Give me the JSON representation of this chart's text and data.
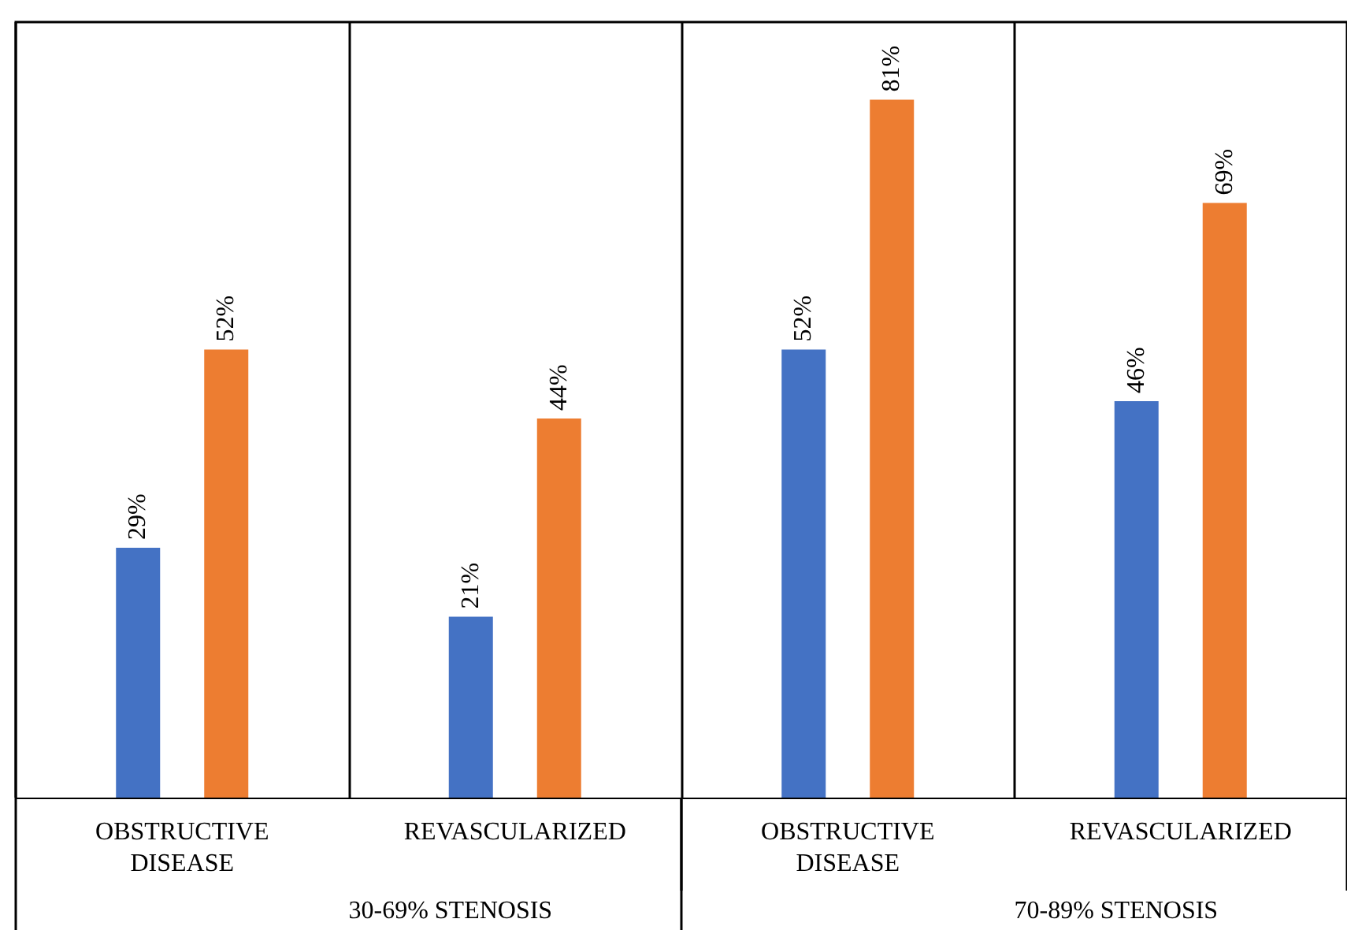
{
  "chart_data": {
    "type": "bar",
    "categories": [
      "OBSTRUCTIVE DISEASE",
      "REVASCULARIZED",
      "OBSTRUCTIVE DISEASE",
      "REVASCULARIZED"
    ],
    "series": [
      {
        "color": "#4472c4",
        "values": [
          29,
          21,
          52,
          46
        ],
        "value_labels": [
          "29%",
          "21%",
          "52%",
          "46%"
        ]
      },
      {
        "color": "#ed7d31",
        "values": [
          52,
          44,
          81,
          69
        ],
        "value_labels": [
          "52%",
          "44%",
          "81%",
          "69%"
        ]
      }
    ],
    "ylim": [
      0,
      90
    ],
    "grid": "x",
    "annotations": [
      "30-69% STENOSIS",
      "70-89% STENOSIS"
    ]
  }
}
